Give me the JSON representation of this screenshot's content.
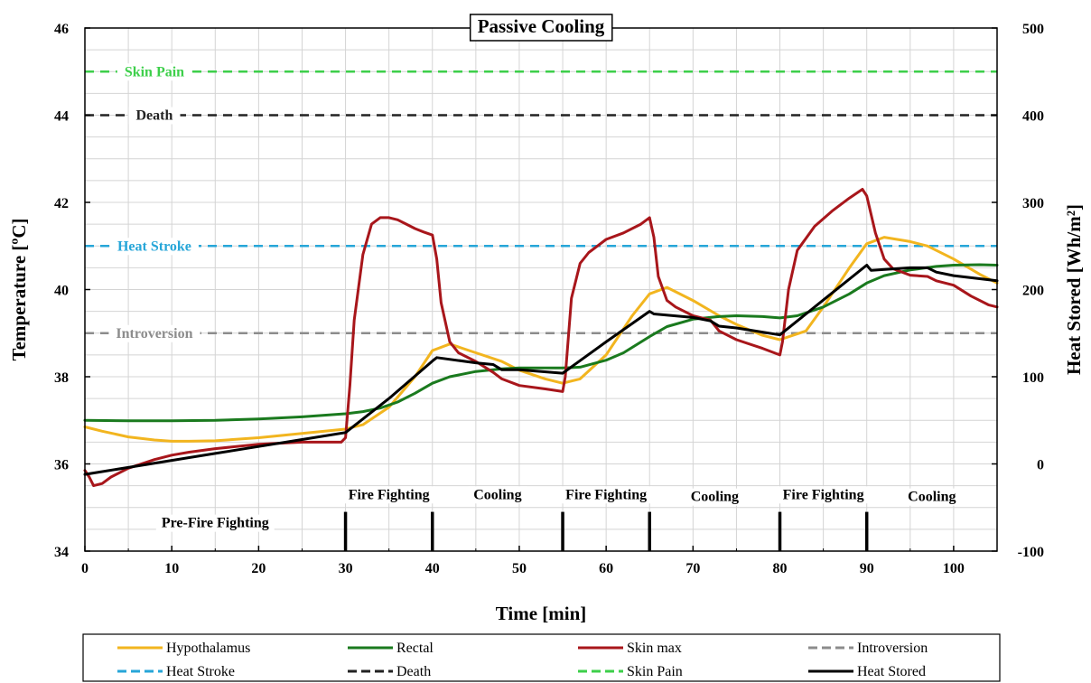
{
  "chart_data": {
    "type": "line",
    "title": "Passive Cooling",
    "xlabel": "Time [min]",
    "ylabel": "Temperature  [ºC]",
    "ylabel_right": "Heat Stored [Wh/m²]",
    "xlim": [
      0,
      105
    ],
    "ylim": [
      34,
      46
    ],
    "ylim_right": [
      -100,
      500
    ],
    "x_ticks": [
      "0",
      "10",
      "20",
      "30",
      "40",
      "50",
      "60",
      "70",
      "80",
      "90",
      "100"
    ],
    "y_ticks": [
      "34",
      "36",
      "38",
      "40",
      "42",
      "44",
      "46"
    ],
    "y_right_ticks": [
      "-100",
      "0",
      "100",
      "200",
      "300",
      "400",
      "500"
    ],
    "grid": true,
    "legend_position": "bottom",
    "series": [
      {
        "name": "Hypothalamus",
        "color": "#f2b51f",
        "axis": "left",
        "x": [
          0,
          2,
          5,
          8,
          10,
          12,
          15,
          20,
          25,
          30,
          32,
          35,
          38,
          40,
          42,
          45,
          48,
          50,
          53,
          55,
          57,
          60,
          63,
          65,
          67,
          70,
          73,
          75,
          78,
          80,
          83,
          85,
          88,
          90,
          92,
          95,
          97,
          100,
          103,
          105
        ],
        "y": [
          36.85,
          36.75,
          36.62,
          36.55,
          36.52,
          36.52,
          36.53,
          36.6,
          36.7,
          36.8,
          36.9,
          37.3,
          38.0,
          38.6,
          38.75,
          38.55,
          38.35,
          38.15,
          37.95,
          37.85,
          37.95,
          38.5,
          39.4,
          39.9,
          40.05,
          39.75,
          39.4,
          39.2,
          38.95,
          38.85,
          39.05,
          39.6,
          40.5,
          41.05,
          41.2,
          41.1,
          41.0,
          40.7,
          40.35,
          40.15
        ]
      },
      {
        "name": "Rectal",
        "color": "#1a7a1e",
        "axis": "left",
        "x": [
          0,
          5,
          10,
          15,
          20,
          25,
          30,
          32,
          34,
          36,
          38,
          40,
          42,
          45,
          48,
          50,
          52,
          55,
          57,
          60,
          62,
          65,
          67,
          70,
          73,
          75,
          78,
          80,
          82,
          85,
          88,
          90,
          92,
          95,
          98,
          100,
          103,
          105
        ],
        "y": [
          37.0,
          36.99,
          36.99,
          37.0,
          37.03,
          37.08,
          37.15,
          37.2,
          37.28,
          37.42,
          37.62,
          37.85,
          38.0,
          38.12,
          38.18,
          38.2,
          38.2,
          38.2,
          38.22,
          38.38,
          38.55,
          38.92,
          39.15,
          39.32,
          39.38,
          39.4,
          39.38,
          39.35,
          39.4,
          39.6,
          39.9,
          40.15,
          40.32,
          40.45,
          40.53,
          40.56,
          40.57,
          40.56
        ]
      },
      {
        "name": "Skin max",
        "color": "#a8161b",
        "axis": "left",
        "x": [
          0,
          0.5,
          1,
          2,
          3,
          5,
          8,
          10,
          12,
          15,
          20,
          25,
          29.5,
          30,
          30.5,
          31,
          32,
          33,
          34,
          35,
          36,
          37,
          38,
          39,
          40,
          40.5,
          41,
          42,
          43,
          45,
          47,
          48,
          50,
          53,
          55,
          55.3,
          56,
          57,
          58,
          59,
          60,
          62,
          64,
          65,
          65.5,
          66,
          67,
          68,
          70,
          72,
          73,
          75,
          78,
          80,
          80.3,
          81,
          82,
          84,
          86,
          88,
          89.5,
          90,
          91,
          92,
          93,
          95,
          97,
          98,
          100,
          102,
          104,
          105
        ],
        "y": [
          35.85,
          35.7,
          35.5,
          35.55,
          35.7,
          35.9,
          36.1,
          36.2,
          36.27,
          36.35,
          36.45,
          36.5,
          36.5,
          36.6,
          37.8,
          39.3,
          40.8,
          41.5,
          41.65,
          41.65,
          41.6,
          41.5,
          41.4,
          41.32,
          41.25,
          40.7,
          39.7,
          38.8,
          38.55,
          38.35,
          38.1,
          37.95,
          37.8,
          37.72,
          37.66,
          38.0,
          39.8,
          40.6,
          40.85,
          41.0,
          41.15,
          41.3,
          41.5,
          41.65,
          41.2,
          40.3,
          39.75,
          39.6,
          39.4,
          39.3,
          39.05,
          38.85,
          38.65,
          38.5,
          38.8,
          40.0,
          40.9,
          41.45,
          41.8,
          42.1,
          42.3,
          42.15,
          41.3,
          40.7,
          40.48,
          40.33,
          40.3,
          40.2,
          40.1,
          39.85,
          39.65,
          39.6
        ]
      },
      {
        "name": "Introversion",
        "color": "#8c8c8c",
        "axis": "left",
        "dashed": true,
        "x": [
          0,
          105
        ],
        "y": [
          39,
          39
        ]
      },
      {
        "name": "Heat Stroke",
        "color": "#27a6d8",
        "axis": "left",
        "dashed": true,
        "x": [
          0,
          105
        ],
        "y": [
          41,
          41
        ]
      },
      {
        "name": "Death",
        "color": "#222222",
        "axis": "left",
        "dashed": true,
        "x": [
          0,
          105
        ],
        "y": [
          44,
          44
        ]
      },
      {
        "name": "Skin Pain",
        "color": "#3dcf4a",
        "axis": "left",
        "dashed": true,
        "x": [
          0,
          105
        ],
        "y": [
          45,
          45
        ]
      },
      {
        "name": "Heat Stored",
        "color": "#000000",
        "axis": "right",
        "x": [
          0,
          5,
          10,
          15,
          20,
          25,
          30,
          35,
          40,
          40.5,
          45,
          47,
          48,
          50,
          55,
          60,
          65,
          65.5,
          70,
          72,
          73,
          75,
          80,
          85,
          90,
          90.5,
          95,
          97,
          98,
          100,
          105
        ],
        "y": [
          -12,
          -4,
          4,
          12,
          20,
          28,
          36,
          75,
          118,
          122,
          116,
          114,
          108,
          108,
          104,
          140,
          175,
          172,
          168,
          164,
          158,
          156,
          148,
          188,
          228,
          222,
          225,
          225,
          220,
          216,
          210
        ]
      }
    ],
    "annotations": {
      "reference_labels": [
        {
          "text": "Skin Pain",
          "x": 8,
          "y": 45,
          "color": "#3dcf4a"
        },
        {
          "text": "Death",
          "x": 8,
          "y": 44,
          "color": "#222222"
        },
        {
          "text": "Heat Stroke",
          "x": 8,
          "y": 41,
          "color": "#27a6d8"
        },
        {
          "text": "Introversion",
          "x": 8,
          "y": 39,
          "color": "#8c8c8c"
        }
      ],
      "phases": [
        {
          "text": "Pre-Fire Fighting",
          "x": 15,
          "y": 34.65
        },
        {
          "text": "Fire Fighting",
          "x": 35,
          "y": 35.3
        },
        {
          "text": "Cooling",
          "x": 47.5,
          "y": 35.3
        },
        {
          "text": "Fire Fighting",
          "x": 60,
          "y": 35.3
        },
        {
          "text": "Cooling",
          "x": 72.5,
          "y": 35.25
        },
        {
          "text": "Fire Fighting",
          "x": 85,
          "y": 35.3
        },
        {
          "text": "Cooling",
          "x": 97.5,
          "y": 35.25
        }
      ],
      "phase_markers_x": [
        30,
        40,
        55,
        65,
        80,
        90
      ]
    },
    "legend_order": [
      "Hypothalamus",
      "Rectal",
      "Skin max",
      "Introversion",
      "Heat Stroke",
      "Death",
      "Skin Pain",
      "Heat Stored"
    ]
  }
}
